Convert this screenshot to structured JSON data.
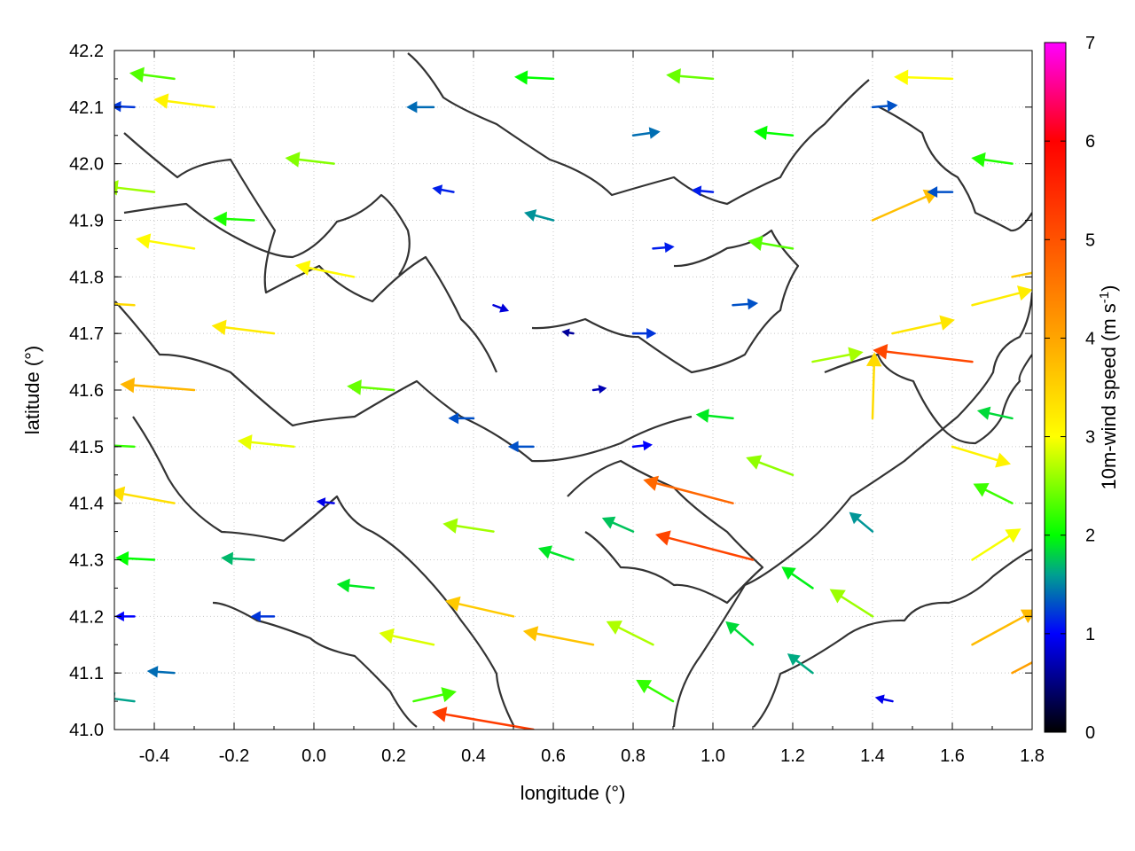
{
  "chart_data": {
    "type": "vector-field",
    "xlabel": "longitude (°)",
    "ylabel": "latitude (°)",
    "colorbar_label": "10m-wind speed (m s",
    "colorbar_label_sup": "-1",
    "colorbar_label_end": ")",
    "xlim": [
      -0.5,
      1.8
    ],
    "ylim": [
      41.0,
      42.2
    ],
    "x_ticks": [
      "-0.4",
      "-0.2",
      "0.0",
      "0.2",
      "0.4",
      "0.6",
      "0.8",
      "1.0",
      "1.2",
      "1.4",
      "1.6",
      "1.8"
    ],
    "x_tick_values": [
      -0.4,
      -0.2,
      0.0,
      0.2,
      0.4,
      0.6,
      0.8,
      1.0,
      1.2,
      1.4,
      1.6,
      1.8
    ],
    "y_ticks": [
      "41.0",
      "41.1",
      "41.2",
      "41.3",
      "41.4",
      "41.5",
      "41.6",
      "41.7",
      "41.8",
      "41.9",
      "42.0",
      "42.1",
      "42.2"
    ],
    "y_tick_values": [
      41.0,
      41.1,
      41.2,
      41.3,
      41.4,
      41.5,
      41.6,
      41.7,
      41.8,
      41.9,
      42.0,
      42.1,
      42.2
    ],
    "colorbar_range": [
      0,
      7
    ],
    "colorbar_ticks": [
      "0",
      "1",
      "2",
      "3",
      "4",
      "5",
      "6",
      "7"
    ],
    "colorbar_tick_values": [
      0,
      1,
      2,
      3,
      4,
      5,
      6,
      7
    ],
    "colormap": [
      {
        "v": 0,
        "c": "#000000"
      },
      {
        "v": 1,
        "c": "#0000ff"
      },
      {
        "v": 1.6,
        "c": "#00a090"
      },
      {
        "v": 2,
        "c": "#00ff00"
      },
      {
        "v": 3,
        "c": "#ffff00"
      },
      {
        "v": 4,
        "c": "#ffa500"
      },
      {
        "v": 6,
        "c": "#ff0000"
      },
      {
        "v": 7,
        "c": "#ff00ff"
      }
    ],
    "grid": "dotted",
    "contour_color": "#333333",
    "vectors": [
      {
        "lon": -0.45,
        "lat": 42.1,
        "u": -1.2,
        "v": 0.05
      },
      {
        "lon": -0.35,
        "lat": 42.15,
        "u": -2.3,
        "v": 0.3
      },
      {
        "lon": -0.25,
        "lat": 42.1,
        "u": -3.1,
        "v": 0.4
      },
      {
        "lon": -0.4,
        "lat": 41.95,
        "u": -2.6,
        "v": 0.3
      },
      {
        "lon": -0.3,
        "lat": 41.85,
        "u": -3.0,
        "v": 0.5
      },
      {
        "lon": -0.45,
        "lat": 41.75,
        "u": -3.4,
        "v": 0.2
      },
      {
        "lon": -0.3,
        "lat": 41.6,
        "u": -3.8,
        "v": 0.3
      },
      {
        "lon": -0.45,
        "lat": 41.5,
        "u": -2.2,
        "v": 0.1
      },
      {
        "lon": -0.35,
        "lat": 41.4,
        "u": -3.3,
        "v": 0.6
      },
      {
        "lon": -0.4,
        "lat": 41.3,
        "u": -2.0,
        "v": 0.1
      },
      {
        "lon": -0.45,
        "lat": 41.2,
        "u": -1.0,
        "v": 0.0
      },
      {
        "lon": -0.35,
        "lat": 41.1,
        "u": -1.4,
        "v": 0.1
      },
      {
        "lon": -0.45,
        "lat": 41.05,
        "u": -1.6,
        "v": 0.2
      },
      {
        "lon": -0.15,
        "lat": 41.9,
        "u": -2.1,
        "v": 0.1
      },
      {
        "lon": -0.1,
        "lat": 41.7,
        "u": -3.2,
        "v": 0.4
      },
      {
        "lon": -0.05,
        "lat": 41.5,
        "u": -2.9,
        "v": 0.3
      },
      {
        "lon": -0.15,
        "lat": 41.3,
        "u": -1.7,
        "v": 0.1
      },
      {
        "lon": -0.1,
        "lat": 41.2,
        "u": -1.2,
        "v": 0.0
      },
      {
        "lon": 0.05,
        "lat": 42.0,
        "u": -2.5,
        "v": 0.3
      },
      {
        "lon": 0.1,
        "lat": 41.8,
        "u": -3.0,
        "v": 0.6
      },
      {
        "lon": 0.2,
        "lat": 41.6,
        "u": -2.4,
        "v": 0.2
      },
      {
        "lon": 0.05,
        "lat": 41.4,
        "u": -0.9,
        "v": 0.1
      },
      {
        "lon": 0.15,
        "lat": 41.25,
        "u": -1.9,
        "v": 0.2
      },
      {
        "lon": 0.25,
        "lat": 41.05,
        "u": 2.2,
        "v": 0.5
      },
      {
        "lon": 0.3,
        "lat": 41.15,
        "u": -2.8,
        "v": 0.6
      },
      {
        "lon": 0.3,
        "lat": 42.1,
        "u": -1.4,
        "v": 0.0
      },
      {
        "lon": 0.35,
        "lat": 41.95,
        "u": -1.1,
        "v": 0.2
      },
      {
        "lon": 0.45,
        "lat": 41.75,
        "u": 0.8,
        "v": -0.3
      },
      {
        "lon": 0.4,
        "lat": 41.55,
        "u": -1.3,
        "v": 0.0
      },
      {
        "lon": 0.45,
        "lat": 41.35,
        "u": -2.6,
        "v": 0.4
      },
      {
        "lon": 0.5,
        "lat": 41.2,
        "u": -3.5,
        "v": 0.8
      },
      {
        "lon": 0.55,
        "lat": 41.0,
        "u": -5.2,
        "v": 0.9
      },
      {
        "lon": 0.6,
        "lat": 42.15,
        "u": -2.0,
        "v": 0.1
      },
      {
        "lon": 0.6,
        "lat": 41.9,
        "u": -1.5,
        "v": 0.4
      },
      {
        "lon": 0.65,
        "lat": 41.7,
        "u": -0.6,
        "v": 0.1
      },
      {
        "lon": 0.55,
        "lat": 41.5,
        "u": -1.3,
        "v": 0.0
      },
      {
        "lon": 0.7,
        "lat": 41.6,
        "u": 0.7,
        "v": 0.1
      },
      {
        "lon": 0.65,
        "lat": 41.3,
        "u": -1.8,
        "v": 0.6
      },
      {
        "lon": 0.7,
        "lat": 41.15,
        "u": -3.6,
        "v": 0.7
      },
      {
        "lon": 0.8,
        "lat": 42.05,
        "u": 1.4,
        "v": 0.2
      },
      {
        "lon": 0.85,
        "lat": 41.85,
        "u": 1.1,
        "v": 0.1
      },
      {
        "lon": 0.8,
        "lat": 41.7,
        "u": 1.2,
        "v": 0.0
      },
      {
        "lon": 0.8,
        "lat": 41.5,
        "u": 1.0,
        "v": 0.1
      },
      {
        "lon": 0.8,
        "lat": 41.35,
        "u": -1.6,
        "v": 0.7
      },
      {
        "lon": 0.85,
        "lat": 41.15,
        "u": -2.4,
        "v": 1.2
      },
      {
        "lon": 0.9,
        "lat": 41.05,
        "u": -1.9,
        "v": 1.1
      },
      {
        "lon": 1.0,
        "lat": 42.15,
        "u": -2.4,
        "v": 0.2
      },
      {
        "lon": 1.0,
        "lat": 41.95,
        "u": -1.1,
        "v": 0.1
      },
      {
        "lon": 1.05,
        "lat": 41.75,
        "u": 1.3,
        "v": 0.1
      },
      {
        "lon": 1.05,
        "lat": 41.55,
        "u": -1.9,
        "v": 0.2
      },
      {
        "lon": 1.05,
        "lat": 41.4,
        "u": -4.6,
        "v": 1.2
      },
      {
        "lon": 1.1,
        "lat": 41.3,
        "u": -5.0,
        "v": 1.3
      },
      {
        "lon": 1.1,
        "lat": 41.15,
        "u": -1.4,
        "v": 1.2
      },
      {
        "lon": 1.2,
        "lat": 42.05,
        "u": -2.0,
        "v": 0.2
      },
      {
        "lon": 1.2,
        "lat": 41.85,
        "u": -2.3,
        "v": 0.4
      },
      {
        "lon": 1.25,
        "lat": 41.65,
        "u": 2.6,
        "v": 0.5
      },
      {
        "lon": 1.2,
        "lat": 41.45,
        "u": -2.4,
        "v": 0.9
      },
      {
        "lon": 1.25,
        "lat": 41.25,
        "u": -1.6,
        "v": 1.1
      },
      {
        "lon": 1.25,
        "lat": 41.1,
        "u": -1.3,
        "v": 1.0
      },
      {
        "lon": 1.4,
        "lat": 42.1,
        "u": 1.3,
        "v": 0.1
      },
      {
        "lon": 1.4,
        "lat": 41.9,
        "u": 3.4,
        "v": 1.5
      },
      {
        "lon": 1.45,
        "lat": 41.7,
        "u": 3.2,
        "v": 0.7
      },
      {
        "lon": 1.4,
        "lat": 41.55,
        "u": 0.1,
        "v": 3.4
      },
      {
        "lon": 1.4,
        "lat": 41.35,
        "u": -1.2,
        "v": 1.0
      },
      {
        "lon": 1.4,
        "lat": 41.2,
        "u": -2.2,
        "v": 1.4
      },
      {
        "lon": 1.45,
        "lat": 41.05,
        "u": -0.9,
        "v": 0.2
      },
      {
        "lon": 1.6,
        "lat": 42.15,
        "u": -3.0,
        "v": 0.1
      },
      {
        "lon": 1.6,
        "lat": 41.95,
        "u": -1.3,
        "v": 0.0
      },
      {
        "lon": 1.65,
        "lat": 41.75,
        "u": 3.1,
        "v": 0.8
      },
      {
        "lon": 1.65,
        "lat": 41.65,
        "u": -5.1,
        "v": 0.6
      },
      {
        "lon": 1.6,
        "lat": 41.5,
        "u": 3.0,
        "v": -0.9
      },
      {
        "lon": 1.65,
        "lat": 41.3,
        "u": 2.5,
        "v": 1.6
      },
      {
        "lon": 1.65,
        "lat": 41.15,
        "u": 3.3,
        "v": 1.8
      },
      {
        "lon": 1.75,
        "lat": 42.0,
        "u": -2.1,
        "v": 0.3
      },
      {
        "lon": 1.75,
        "lat": 41.8,
        "u": 3.5,
        "v": 0.7
      },
      {
        "lon": 1.75,
        "lat": 41.55,
        "u": -1.8,
        "v": 0.4
      },
      {
        "lon": 1.75,
        "lat": 41.4,
        "u": -2.0,
        "v": 1.0
      },
      {
        "lon": 1.75,
        "lat": 41.1,
        "u": 3.6,
        "v": 1.9
      }
    ]
  }
}
